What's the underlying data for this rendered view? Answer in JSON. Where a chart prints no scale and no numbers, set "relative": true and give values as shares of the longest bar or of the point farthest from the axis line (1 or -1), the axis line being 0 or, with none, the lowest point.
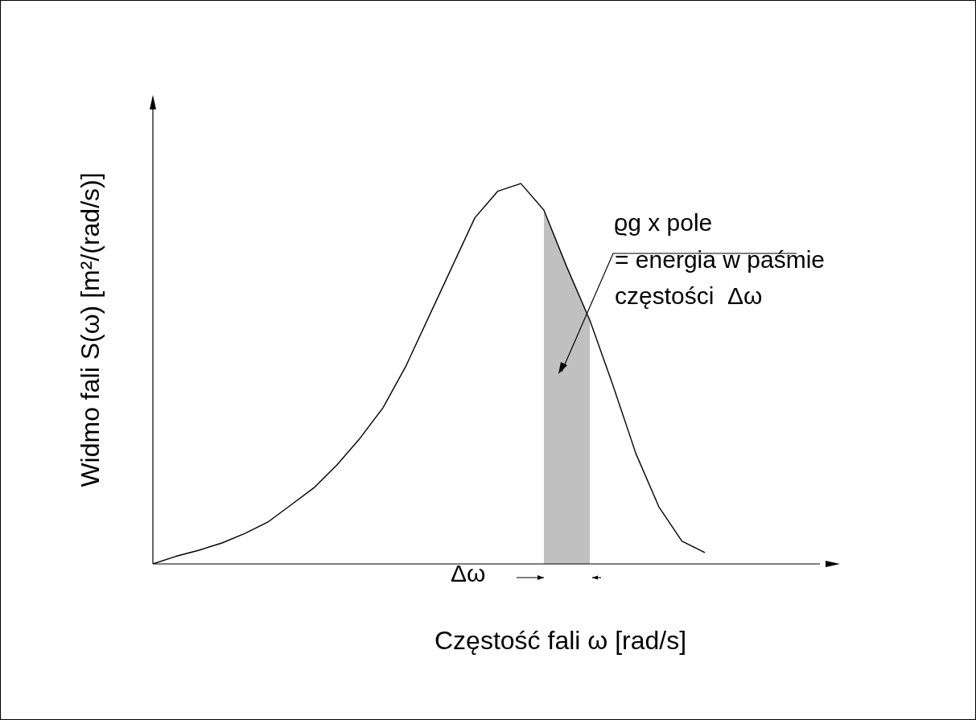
{
  "chart_data": {
    "type": "line",
    "relative": true,
    "xlabel": "Częstość fali ω [rad/s]",
    "ylabel": "Widmo fali S(ω) [m²/(rad/s)]",
    "categories": [
      null,
      null,
      null,
      null,
      null,
      null,
      null,
      null,
      null,
      null,
      null,
      null,
      null,
      null,
      null,
      null,
      null,
      null,
      null,
      null,
      null,
      null,
      null,
      null,
      null,
      null,
      null,
      null,
      null,
      null
    ],
    "series": [
      {
        "color": "#000000",
        "values": [
          0,
          0.02,
          0.036,
          0.055,
          0.08,
          0.11,
          0.155,
          0.2,
          0.26,
          0.33,
          0.41,
          0.52,
          0.65,
          0.78,
          0.91,
          0.98,
          1,
          0.93,
          0.78,
          0.64,
          0.47,
          0.29,
          0.15,
          0.06,
          0.03,
          null,
          null,
          null,
          null,
          null
        ]
      },
      {
        "type": "area",
        "color": "#c0c0c0",
        "values": [
          null,
          null,
          null,
          null,
          null,
          null,
          null,
          null,
          null,
          null,
          null,
          null,
          null,
          null,
          null,
          null,
          null,
          0.93,
          0.78,
          0.64,
          null,
          null,
          null,
          null,
          null,
          null,
          null,
          null,
          null,
          null
        ]
      }
    ],
    "annotations": [
      "ϱg x pole",
      "= energia w paśmie",
      "częstości  Δω",
      "Δω"
    ]
  }
}
